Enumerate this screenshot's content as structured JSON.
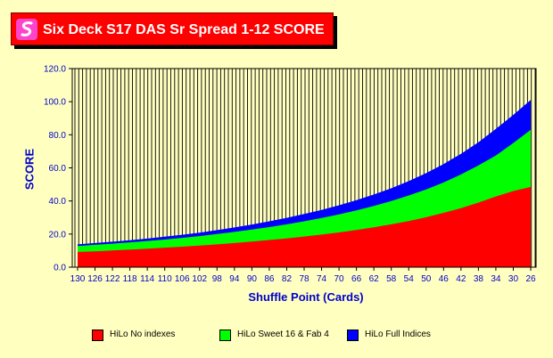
{
  "title": "Six Deck S17 DAS Sr Spread 1-12 SCORE",
  "chart_data": {
    "type": "area",
    "title": "Six Deck S17 DAS Sr Spread 1-12 SCORE",
    "xlabel": "Shuffle Point (Cards)",
    "ylabel": "SCORE",
    "ylim": [
      0,
      120
    ],
    "yticks": [
      "0.0",
      "20.0",
      "40.0",
      "60.0",
      "80.0",
      "100.0",
      "120.0"
    ],
    "x": [
      130,
      126,
      122,
      118,
      114,
      110,
      106,
      102,
      98,
      94,
      90,
      86,
      82,
      78,
      74,
      70,
      66,
      62,
      58,
      54,
      50,
      46,
      42,
      38,
      34,
      30,
      26
    ],
    "xtick_labels": [
      "130",
      "126",
      "122",
      "118",
      "114",
      "110",
      "106",
      "102",
      "98",
      "94",
      "90",
      "86",
      "82",
      "78",
      "74",
      "70",
      "66",
      "62",
      "58",
      "54",
      "50",
      "46",
      "42",
      "38",
      "34",
      "30",
      "26"
    ],
    "series": [
      {
        "name": "HiLo No indexes",
        "color": "#ff0000",
        "values": [
          9.2,
          9.6,
          10.1,
          10.6,
          11.2,
          11.8,
          12.4,
          13.1,
          13.8,
          14.6,
          15.5,
          16.4,
          17.4,
          18.5,
          19.7,
          21.0,
          22.5,
          24.1,
          25.9,
          27.9,
          30.2,
          32.8,
          35.7,
          39.0,
          42.7,
          46.0,
          48.5
        ]
      },
      {
        "name": "HiLo Sweet 16 & Fab 4",
        "color": "#00ff00",
        "values": [
          12.8,
          13.5,
          14.2,
          15.0,
          15.8,
          16.7,
          17.7,
          18.8,
          20.0,
          21.3,
          22.7,
          24.2,
          25.9,
          27.7,
          29.7,
          31.9,
          34.3,
          37.0,
          40.0,
          43.3,
          47.0,
          51.2,
          56.0,
          61.5,
          67.5,
          75.0,
          83.0
        ]
      },
      {
        "name": "HiLo Full Indices",
        "color": "#0000ff",
        "values": [
          13.8,
          14.6,
          15.4,
          16.3,
          17.3,
          18.4,
          19.6,
          20.9,
          22.4,
          24.0,
          25.8,
          27.7,
          29.8,
          32.1,
          34.6,
          37.4,
          40.5,
          43.9,
          47.7,
          52.0,
          56.8,
          62.3,
          68.5,
          75.5,
          83.5,
          92.0,
          101.0
        ]
      }
    ],
    "grid": {
      "vertical": true,
      "horizontal": false
    },
    "legend_position": "bottom"
  }
}
